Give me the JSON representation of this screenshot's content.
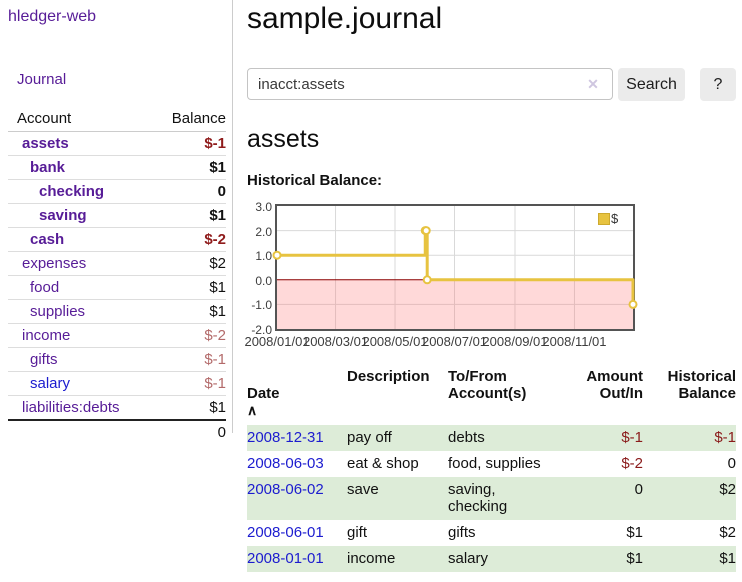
{
  "app": {
    "title": "hledger-web"
  },
  "sidebar": {
    "journal_link": "Journal",
    "accounts_table": {
      "headers": {
        "account": "Account",
        "balance": "Balance"
      },
      "rows": [
        {
          "name": "assets",
          "depth": 1,
          "balance": "$-1",
          "bold": true,
          "balance_tone": "strong",
          "link_color": "purple"
        },
        {
          "name": "bank",
          "depth": 2,
          "balance": "$1",
          "bold": true,
          "balance_tone": "none",
          "link_color": "purple"
        },
        {
          "name": "checking",
          "depth": 3,
          "balance": "0",
          "bold": true,
          "balance_tone": "none",
          "link_color": "purple"
        },
        {
          "name": "saving",
          "depth": 3,
          "balance": "$1",
          "bold": true,
          "balance_tone": "none",
          "link_color": "purple"
        },
        {
          "name": "cash",
          "depth": 2,
          "balance": "$-2",
          "bold": true,
          "balance_tone": "strong",
          "link_color": "purple"
        },
        {
          "name": "expenses",
          "depth": 1,
          "balance": "$2",
          "bold": false,
          "balance_tone": "none",
          "link_color": "purple"
        },
        {
          "name": "food",
          "depth": 2,
          "balance": "$1",
          "bold": false,
          "balance_tone": "none",
          "link_color": "purple"
        },
        {
          "name": "supplies",
          "depth": 2,
          "balance": "$1",
          "bold": false,
          "balance_tone": "none",
          "link_color": "purple"
        },
        {
          "name": "income",
          "depth": 1,
          "balance": "$-2",
          "bold": false,
          "balance_tone": "soft",
          "link_color": "purple"
        },
        {
          "name": "gifts",
          "depth": 2,
          "balance": "$-1",
          "bold": false,
          "balance_tone": "soft",
          "link_color": "purple"
        },
        {
          "name": "salary",
          "depth": 2,
          "balance": "$-1",
          "bold": false,
          "balance_tone": "soft",
          "link_color": "blue"
        },
        {
          "name": "liabilities:debts",
          "depth": 1,
          "balance": "$1",
          "bold": false,
          "balance_tone": "none",
          "link_color": "purple"
        }
      ],
      "total": "0"
    }
  },
  "main": {
    "title": "sample.journal",
    "search": {
      "value": "inacct:assets",
      "clear_icon": "✕",
      "button_label": "Search",
      "help_label": "?"
    },
    "account_heading": "assets",
    "chart_label": "Historical Balance:",
    "transactions": {
      "headers": {
        "date": "Date",
        "sort_icon": "∧",
        "description": "Description",
        "tofrom": "To/From\nAccount(s)",
        "amount": "Amount\nOut/In",
        "balance": "Historical\nBalance"
      },
      "rows": [
        {
          "date": "2008-12-31",
          "description": "pay off",
          "accounts": "debts",
          "amount": "$-1",
          "amount_negative": true,
          "balance": "$-1",
          "balance_negative": true,
          "shaded": true
        },
        {
          "date": "2008-06-03",
          "description": "eat & shop",
          "accounts": "food, supplies",
          "amount": "$-2",
          "amount_negative": true,
          "balance": "0",
          "balance_negative": false,
          "shaded": false
        },
        {
          "date": "2008-06-02",
          "description": "save",
          "accounts": "saving,\nchecking",
          "amount": "0",
          "amount_negative": false,
          "balance": "$2",
          "balance_negative": false,
          "shaded": true
        },
        {
          "date": "2008-06-01",
          "description": "gift",
          "accounts": "gifts",
          "amount": "$1",
          "amount_negative": false,
          "balance": "$2",
          "balance_negative": false,
          "shaded": false
        },
        {
          "date": "2008-01-01",
          "description": "income",
          "accounts": "salary",
          "amount": "$1",
          "amount_negative": false,
          "balance": "$1",
          "balance_negative": false,
          "shaded": true
        }
      ]
    }
  },
  "colors": {
    "link_purple": "#571c97",
    "link_blue": "#1c1ccf",
    "negative_strong": "#8f1b1b",
    "negative_soft": "#b36a6a",
    "row_shade_green": "#ddecd8",
    "chart_line_gold": "#e7c340",
    "chart_zero_line": "#8b0000",
    "chart_negative_fill": "#fbdcdc",
    "chart_grid": "#d9d9d9",
    "chart_border": "#545454"
  },
  "chart_data": {
    "type": "line",
    "title": "Historical Balance:",
    "legend_position": "top-right",
    "grid": true,
    "steps": true,
    "ylim": [
      -2,
      3
    ],
    "y_ticks": [
      "3.0",
      "2.0",
      "1.0",
      "0.0",
      "-1.0",
      "-2.0"
    ],
    "y_tick_values": [
      3,
      2,
      1,
      0,
      -1,
      -2
    ],
    "x_ticks": [
      "2008/01/01",
      "2008/03/01",
      "2008/05/01",
      "2008/07/01",
      "2008/09/01",
      "2008/11/01"
    ],
    "x_tick_days": [
      0,
      60,
      121,
      182,
      244,
      305
    ],
    "x_range_days": 365,
    "series": [
      {
        "name": "$",
        "color": "#e7c340",
        "points_x_days": [
          0,
          152,
          153,
          154,
          365
        ],
        "points_dates": [
          "2008-01-01",
          "2008-06-01",
          "2008-06-02",
          "2008-06-03",
          "2008-12-31"
        ],
        "values": [
          1,
          2,
          2,
          0,
          -1
        ]
      }
    ]
  }
}
